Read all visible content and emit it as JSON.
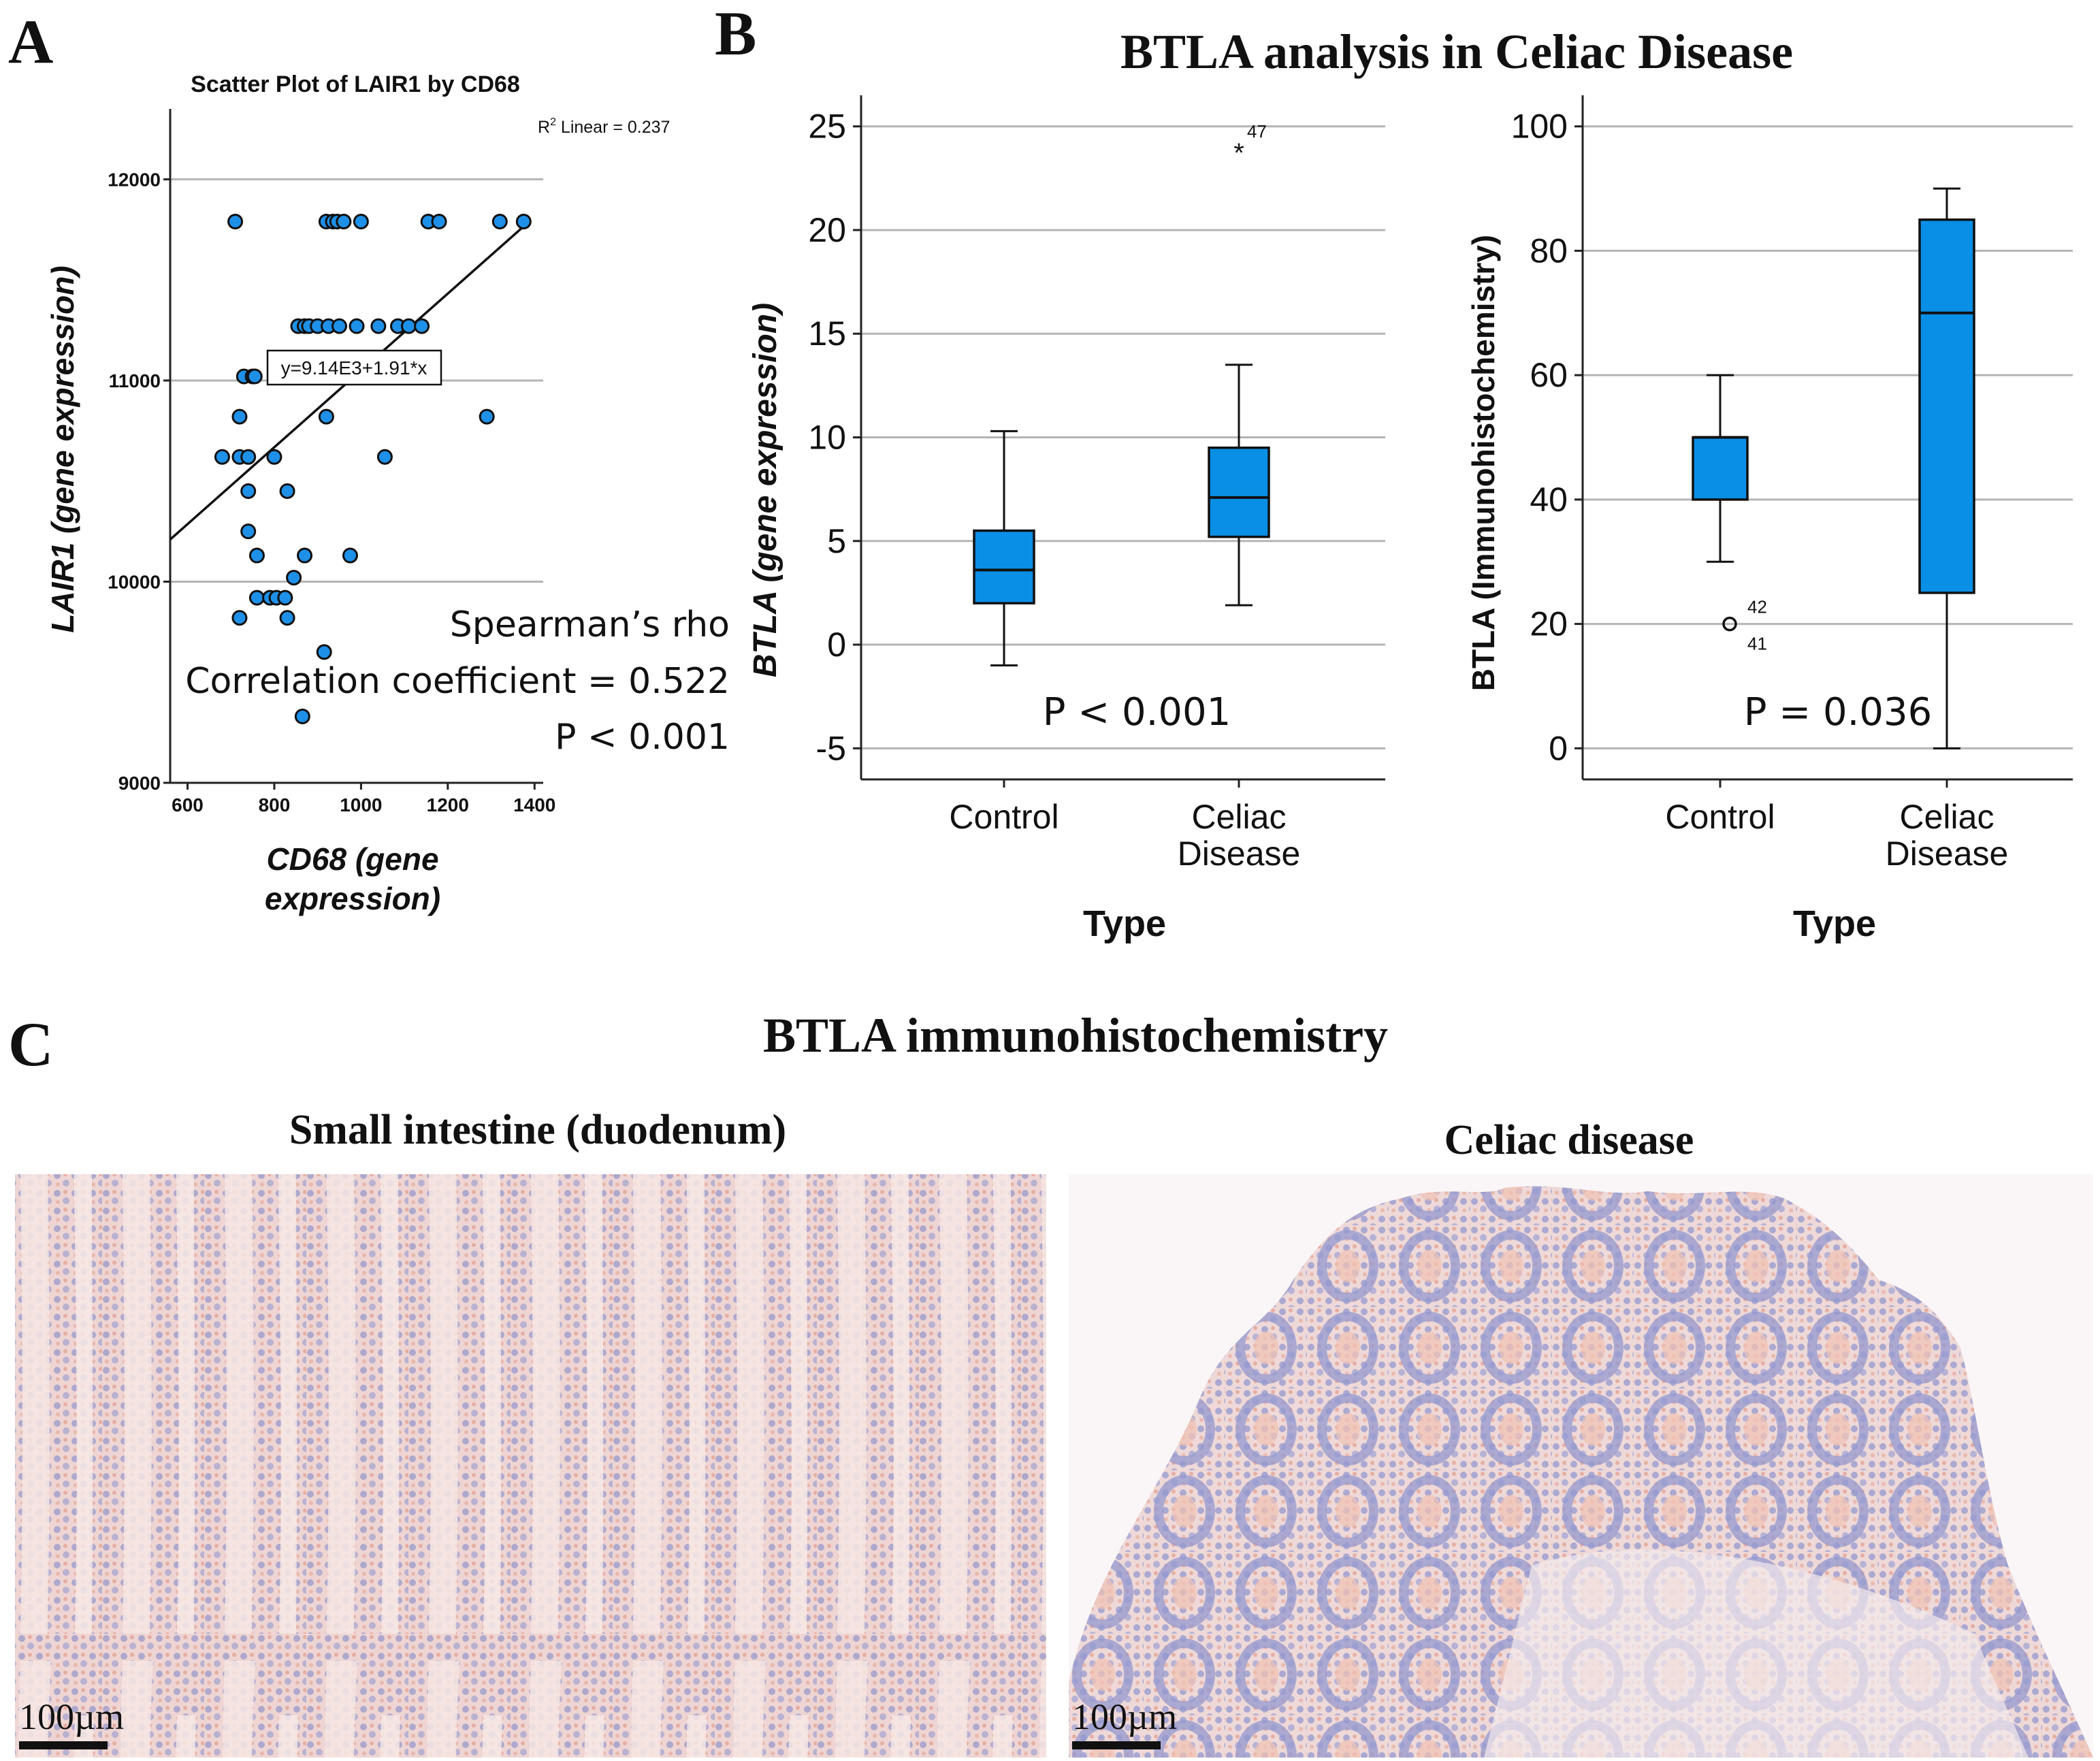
{
  "panels": {
    "a": {
      "letter": "A"
    },
    "b": {
      "letter": "B",
      "title": "BTLA analysis in Celiac Disease"
    },
    "c": {
      "letter": "C",
      "title": "BTLA immunohistochemistry",
      "left_label": "Small intestine (duodenum)",
      "right_label": "Celiac disease",
      "scale_bar": "100µm"
    }
  },
  "colors": {
    "box_fill": "#0a8fe6",
    "point_fill": "#1e90e8",
    "tissue_bg": "#f4e6e6",
    "tissue_blue": "#8a93cf",
    "tissue_pink": "#e8a08c"
  },
  "chart_data": [
    {
      "id": "scatter",
      "type": "scatter",
      "title": "Scatter Plot of LAIR1 by CD68",
      "xlabel": "CD68 (gene expression)",
      "ylabel": "LAIR1 (gene expression)",
      "xlim": [
        560,
        1420
      ],
      "ylim": [
        9000,
        12350
      ],
      "xticks": [
        600,
        800,
        1000,
        1200,
        1400
      ],
      "yticks": [
        9000,
        10000,
        11000,
        12000
      ],
      "r2_label": "R",
      "r2_text": " Linear = 0.237",
      "equation": "y=9.14E3+1.91*x",
      "fit": {
        "intercept": 9140,
        "slope": 1.91
      },
      "stats_line1": "Spearman’s rho",
      "stats_line2": "Correlation coefficient = 0.522",
      "stats_line3": "P < 0.001",
      "points": [
        [
          710,
          11790
        ],
        [
          920,
          11790
        ],
        [
          935,
          11790
        ],
        [
          945,
          11790
        ],
        [
          960,
          11790
        ],
        [
          1000,
          11790
        ],
        [
          1155,
          11790
        ],
        [
          1180,
          11790
        ],
        [
          1320,
          11790
        ],
        [
          1375,
          11790
        ],
        [
          855,
          11270
        ],
        [
          870,
          11270
        ],
        [
          880,
          11270
        ],
        [
          900,
          11270
        ],
        [
          925,
          11270
        ],
        [
          950,
          11270
        ],
        [
          990,
          11270
        ],
        [
          1040,
          11270
        ],
        [
          1085,
          11270
        ],
        [
          1110,
          11270
        ],
        [
          1140,
          11270
        ],
        [
          730,
          11020
        ],
        [
          750,
          11020
        ],
        [
          755,
          11020
        ],
        [
          920,
          10820
        ],
        [
          720,
          10820
        ],
        [
          1290,
          10820
        ],
        [
          680,
          10620
        ],
        [
          720,
          10620
        ],
        [
          740,
          10620
        ],
        [
          800,
          10620
        ],
        [
          1055,
          10620
        ],
        [
          740,
          10450
        ],
        [
          830,
          10450
        ],
        [
          740,
          10250
        ],
        [
          760,
          10130
        ],
        [
          870,
          10130
        ],
        [
          975,
          10130
        ],
        [
          760,
          9920
        ],
        [
          790,
          9920
        ],
        [
          805,
          9920
        ],
        [
          825,
          9920
        ],
        [
          845,
          10020
        ],
        [
          720,
          9820
        ],
        [
          830,
          9820
        ],
        [
          915,
          9650
        ],
        [
          865,
          9330
        ]
      ]
    },
    {
      "id": "box-gene",
      "type": "box",
      "xlabel": "Type",
      "ylabel": "BTLA (gene expression)",
      "ylim": [
        -6.5,
        26.5
      ],
      "yticks": [
        -5,
        0,
        5,
        10,
        15,
        20,
        25
      ],
      "pvalue": "P < 0.001",
      "groups": [
        {
          "label_line1": "Control",
          "label_line2": "",
          "min": -1,
          "q1": 2,
          "median": 3.6,
          "q3": 5.5,
          "max": 10.3
        },
        {
          "label_line1": "Celiac",
          "label_line2": "Disease",
          "min": 1.9,
          "q1": 5.2,
          "median": 7.1,
          "q3": 9.5,
          "max": 13.5
        }
      ],
      "outliers": [
        {
          "group": 1,
          "value": 24,
          "symbol": "*",
          "label": "47"
        }
      ]
    },
    {
      "id": "box-ihc",
      "type": "box",
      "xlabel": "Type",
      "ylabel": "BTLA (Immunohistochemistry)",
      "ylim": [
        -5,
        105
      ],
      "yticks": [
        0,
        20,
        40,
        60,
        80,
        100
      ],
      "pvalue": "P = 0.036",
      "groups": [
        {
          "label_line1": "Control",
          "label_line2": "",
          "min": 30,
          "q1": 40,
          "median": 50,
          "q3": 50,
          "max": 60
        },
        {
          "label_line1": "Celiac",
          "label_line2": "Disease",
          "min": 0,
          "q1": 25,
          "median": 70,
          "q3": 85,
          "max": 90
        }
      ],
      "outliers": [
        {
          "group": 0,
          "value": 20,
          "symbol": "o",
          "label": "42",
          "label2": "41"
        }
      ]
    }
  ]
}
